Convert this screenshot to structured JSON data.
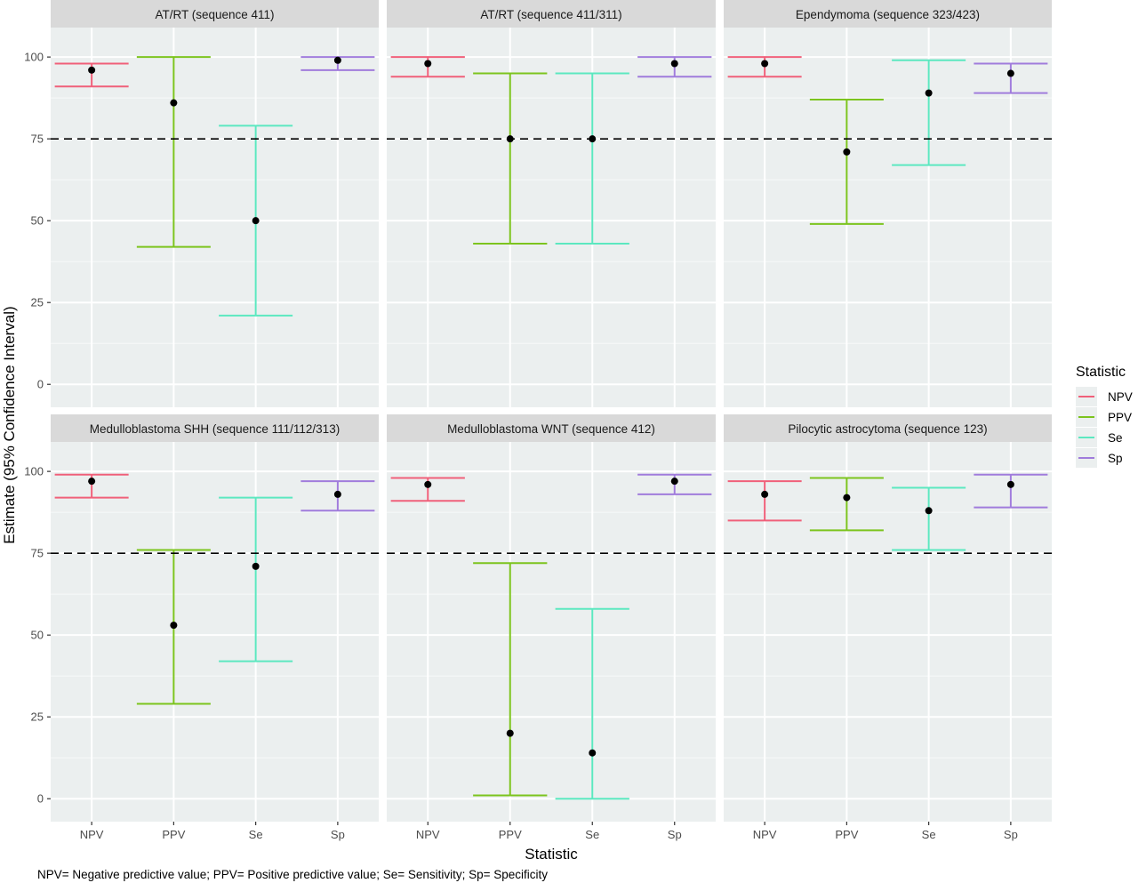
{
  "chart_data": {
    "type": "errorbar-faceted",
    "xlabel": "Statistic",
    "ylabel": "Estimate (95% Confidence Interval)",
    "ylim": [
      -7,
      109
    ],
    "yticks": [
      0,
      25,
      50,
      75,
      100
    ],
    "reference_line": {
      "y": 75,
      "style": "dashed",
      "color": "#000000"
    },
    "categories": [
      "NPV",
      "PPV",
      "Se",
      "Sp"
    ],
    "legend": {
      "title": "Statistic",
      "position": "right",
      "entries": [
        {
          "label": "NPV",
          "color": "#F8766D"
        },
        {
          "label": "PPV",
          "color": "#7CAE00"
        },
        {
          "label": "Se",
          "color": "#00E5B8"
        },
        {
          "label": "Sp",
          "color": "#C77CFF"
        }
      ]
    },
    "colors": {
      "NPV": "#F0607A",
      "PPV": "#7CC41E",
      "Se": "#5CE8C0",
      "Sp": "#A07CDC"
    },
    "grid": true,
    "panels": [
      {
        "title": "AT/RT (sequence 411)",
        "stats": [
          {
            "cat": "NPV",
            "est": 96,
            "lo": 91,
            "hi": 98
          },
          {
            "cat": "PPV",
            "est": 86,
            "lo": 42,
            "hi": 100
          },
          {
            "cat": "Se",
            "est": 50,
            "lo": 21,
            "hi": 79
          },
          {
            "cat": "Sp",
            "est": 99,
            "lo": 96,
            "hi": 100
          }
        ]
      },
      {
        "title": "AT/RT (sequence 411/311)",
        "stats": [
          {
            "cat": "NPV",
            "est": 98,
            "lo": 94,
            "hi": 100
          },
          {
            "cat": "PPV",
            "est": 75,
            "lo": 43,
            "hi": 95
          },
          {
            "cat": "Se",
            "est": 75,
            "lo": 43,
            "hi": 95
          },
          {
            "cat": "Sp",
            "est": 98,
            "lo": 94,
            "hi": 100
          }
        ]
      },
      {
        "title": "Ependymoma (sequence 323/423)",
        "stats": [
          {
            "cat": "NPV",
            "est": 98,
            "lo": 94,
            "hi": 100
          },
          {
            "cat": "PPV",
            "est": 71,
            "lo": 49,
            "hi": 87
          },
          {
            "cat": "Se",
            "est": 89,
            "lo": 67,
            "hi": 99
          },
          {
            "cat": "Sp",
            "est": 95,
            "lo": 89,
            "hi": 98
          }
        ]
      },
      {
        "title": "Medulloblastoma SHH (sequence 111/112/313)",
        "stats": [
          {
            "cat": "NPV",
            "est": 97,
            "lo": 92,
            "hi": 99
          },
          {
            "cat": "PPV",
            "est": 53,
            "lo": 29,
            "hi": 76
          },
          {
            "cat": "Se",
            "est": 71,
            "lo": 42,
            "hi": 92
          },
          {
            "cat": "Sp",
            "est": 93,
            "lo": 88,
            "hi": 97
          }
        ]
      },
      {
        "title": "Medulloblastoma WNT (sequence 412)",
        "stats": [
          {
            "cat": "NPV",
            "est": 96,
            "lo": 91,
            "hi": 98
          },
          {
            "cat": "PPV",
            "est": 20,
            "lo": 1,
            "hi": 72
          },
          {
            "cat": "Se",
            "est": 14,
            "lo": 0,
            "hi": 58
          },
          {
            "cat": "Sp",
            "est": 97,
            "lo": 93,
            "hi": 99
          }
        ]
      },
      {
        "title": "Pilocytic astrocytoma (sequence 123)",
        "stats": [
          {
            "cat": "NPV",
            "est": 93,
            "lo": 85,
            "hi": 97
          },
          {
            "cat": "PPV",
            "est": 92,
            "lo": 82,
            "hi": 98
          },
          {
            "cat": "Se",
            "est": 88,
            "lo": 76,
            "hi": 95
          },
          {
            "cat": "Sp",
            "est": 96,
            "lo": 89,
            "hi": 99
          }
        ]
      }
    ],
    "caption": "NPV= Negative predictive value; PPV= Positive predictive value; Se= Sensitivity; Sp= Specificity"
  }
}
